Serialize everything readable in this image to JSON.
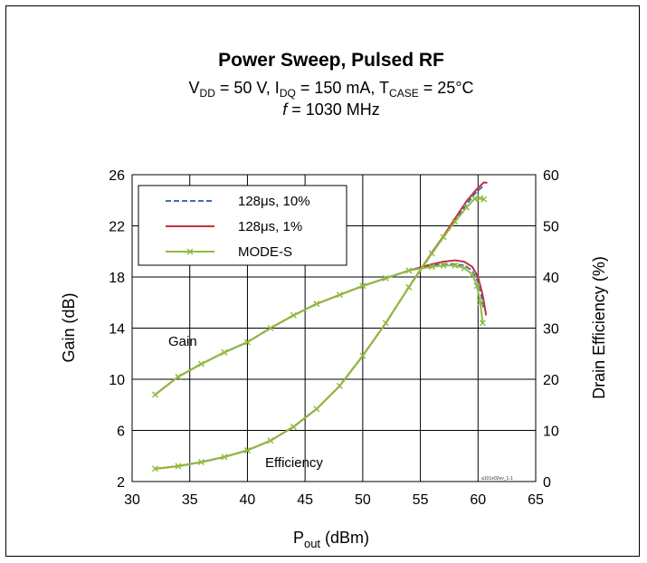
{
  "chart_data": {
    "type": "line",
    "title": "Power Sweep, Pulsed RF",
    "subtitle_line1": {
      "vdd_sym": "V",
      "vdd_sub": "DD",
      "vdd_val": " = 50 V, ",
      "idq_sym": "I",
      "idq_sub": "DQ",
      "idq_val": " = 150 mA, ",
      "tcase_sym": "T",
      "tcase_sub": "CASE",
      "tcase_val": " = 25°C"
    },
    "subtitle_line2": {
      "f_sym": "f",
      "f_val": " = 1030 MHz"
    },
    "xlabel": {
      "main": "P",
      "sub": "out",
      "unit": " (dBm)"
    },
    "ylabel_left": "Gain (dB)",
    "ylabel_right": "Drain Efficiency (%)",
    "xlim": [
      30,
      65
    ],
    "ylim_left": [
      2,
      26
    ],
    "ylim_right": [
      0,
      60
    ],
    "x_ticks": [
      "30",
      "35",
      "40",
      "45",
      "50",
      "55",
      "60",
      "65"
    ],
    "y_left_ticks": [
      "2",
      "6",
      "10",
      "14",
      "18",
      "22",
      "26"
    ],
    "y_right_ticks": [
      "0",
      "10",
      "20",
      "30",
      "40",
      "50",
      "60"
    ],
    "grid": true,
    "legend_position": "top-left",
    "annotations": {
      "gain": "Gain",
      "efficiency": "Efficiency",
      "figure_ref": "a101e02ev_1-1"
    },
    "series": [
      {
        "name": "128μs, 10%",
        "color": "#3d6fb6",
        "style": "dashed",
        "gain": {
          "x": [
            32,
            34,
            36,
            38,
            40,
            42,
            44,
            46,
            48,
            50,
            52,
            54,
            56,
            57,
            58,
            58.8,
            59.5,
            60.0,
            60.3,
            60.5
          ],
          "y": [
            8.8,
            10.2,
            11.2,
            12.1,
            12.9,
            14.0,
            15.0,
            15.9,
            16.6,
            17.3,
            17.9,
            18.5,
            18.9,
            19.0,
            19.0,
            18.9,
            18.5,
            17.6,
            16.5,
            15.4
          ]
        },
        "efficiency": {
          "x": [
            32,
            34,
            36,
            38,
            40,
            42,
            44,
            46,
            48,
            50,
            52,
            54,
            56,
            57,
            58,
            59,
            59.8,
            60.4
          ],
          "y": [
            2.5,
            3.0,
            3.8,
            4.8,
            6.1,
            8.0,
            10.7,
            14.2,
            18.7,
            24.6,
            31.0,
            38.0,
            44.6,
            47.8,
            51.0,
            54.2,
            56.5,
            57.7
          ]
        }
      },
      {
        "name": "128μs, 1%",
        "color": "#c0343a",
        "style": "solid",
        "gain": {
          "x": [
            32,
            34,
            36,
            38,
            40,
            42,
            44,
            46,
            48,
            50,
            52,
            54,
            56,
            57,
            58,
            58.8,
            59.5,
            60.0,
            60.4,
            60.7
          ],
          "y": [
            8.8,
            10.2,
            11.2,
            12.1,
            12.9,
            14.0,
            15.0,
            15.9,
            16.6,
            17.3,
            17.9,
            18.5,
            19.0,
            19.2,
            19.3,
            19.2,
            18.8,
            18.0,
            16.6,
            15.0
          ]
        },
        "efficiency": {
          "x": [
            32,
            34,
            36,
            38,
            40,
            42,
            44,
            46,
            48,
            50,
            52,
            54,
            56,
            57,
            58,
            59,
            59.9,
            60.5,
            60.8
          ],
          "y": [
            2.5,
            3.0,
            3.8,
            4.8,
            6.1,
            8.0,
            10.7,
            14.2,
            18.7,
            24.6,
            31.0,
            38.0,
            44.8,
            48.0,
            51.4,
            54.8,
            57.2,
            58.5,
            58.4
          ]
        }
      },
      {
        "name": "MODE-S",
        "color": "#8fbc3f",
        "style": "solid-markers",
        "gain": {
          "x": [
            32,
            34,
            36,
            38,
            40,
            42,
            44,
            46,
            48,
            50,
            52,
            54,
            56,
            57,
            58,
            58.8,
            59.5,
            59.9,
            60.2,
            60.4
          ],
          "y": [
            8.8,
            10.2,
            11.2,
            12.1,
            12.9,
            14.0,
            15.0,
            15.9,
            16.6,
            17.3,
            17.9,
            18.5,
            18.8,
            18.9,
            18.9,
            18.7,
            18.2,
            17.3,
            16.0,
            14.4
          ]
        },
        "efficiency": {
          "x": [
            32,
            34,
            36,
            38,
            40,
            42,
            44,
            46,
            48,
            50,
            52,
            54,
            56,
            57,
            58,
            59,
            59.7,
            60.2,
            60.5
          ],
          "y": [
            2.5,
            3.0,
            3.8,
            4.8,
            6.1,
            8.0,
            10.7,
            14.2,
            18.7,
            24.6,
            31.0,
            38.0,
            44.6,
            47.8,
            50.8,
            53.6,
            55.3,
            55.4,
            55.2
          ]
        }
      }
    ]
  }
}
